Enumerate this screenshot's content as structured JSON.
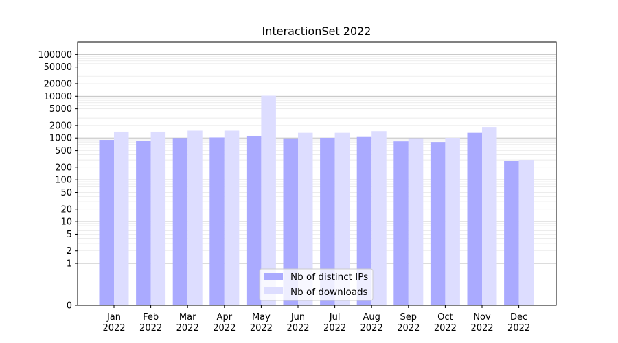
{
  "chart_data": {
    "type": "bar",
    "title": "InteractionSet 2022",
    "xlabel": "",
    "ylabel": "",
    "yscale": "symlog",
    "ylim": [
      0,
      200000
    ],
    "grid": true,
    "legend_position": "lower-center",
    "y_ticks": [
      {
        "value": 0,
        "label": "0"
      },
      {
        "value": 1,
        "label": "1"
      },
      {
        "value": 2,
        "label": "2"
      },
      {
        "value": 5,
        "label": "5"
      },
      {
        "value": 10,
        "label": "10"
      },
      {
        "value": 20,
        "label": "20"
      },
      {
        "value": 50,
        "label": "50"
      },
      {
        "value": 100,
        "label": "100"
      },
      {
        "value": 200,
        "label": "200"
      },
      {
        "value": 500,
        "label": "500"
      },
      {
        "value": 1000,
        "label": "1000"
      },
      {
        "value": 2000,
        "label": "2000"
      },
      {
        "value": 5000,
        "label": "5000"
      },
      {
        "value": 10000,
        "label": "10000"
      },
      {
        "value": 20000,
        "label": "20000"
      },
      {
        "value": 50000,
        "label": "50000"
      },
      {
        "value": 100000,
        "label": "100000"
      }
    ],
    "categories": [
      {
        "month": "Jan",
        "year": "2022"
      },
      {
        "month": "Feb",
        "year": "2022"
      },
      {
        "month": "Mar",
        "year": "2022"
      },
      {
        "month": "Apr",
        "year": "2022"
      },
      {
        "month": "May",
        "year": "2022"
      },
      {
        "month": "Jun",
        "year": "2022"
      },
      {
        "month": "Jul",
        "year": "2022"
      },
      {
        "month": "Aug",
        "year": "2022"
      },
      {
        "month": "Sep",
        "year": "2022"
      },
      {
        "month": "Oct",
        "year": "2022"
      },
      {
        "month": "Nov",
        "year": "2022"
      },
      {
        "month": "Dec",
        "year": "2022"
      }
    ],
    "series": [
      {
        "name": "Nb of distinct IPs",
        "color": "#aaaaff",
        "values": [
          900,
          850,
          1000,
          1030,
          1130,
          980,
          1010,
          1100,
          830,
          800,
          1330,
          280
        ]
      },
      {
        "name": "Nb of downloads",
        "color": "#ddddff",
        "values": [
          1420,
          1420,
          1500,
          1500,
          10300,
          1330,
          1330,
          1460,
          990,
          1010,
          1840,
          300
        ]
      }
    ]
  }
}
